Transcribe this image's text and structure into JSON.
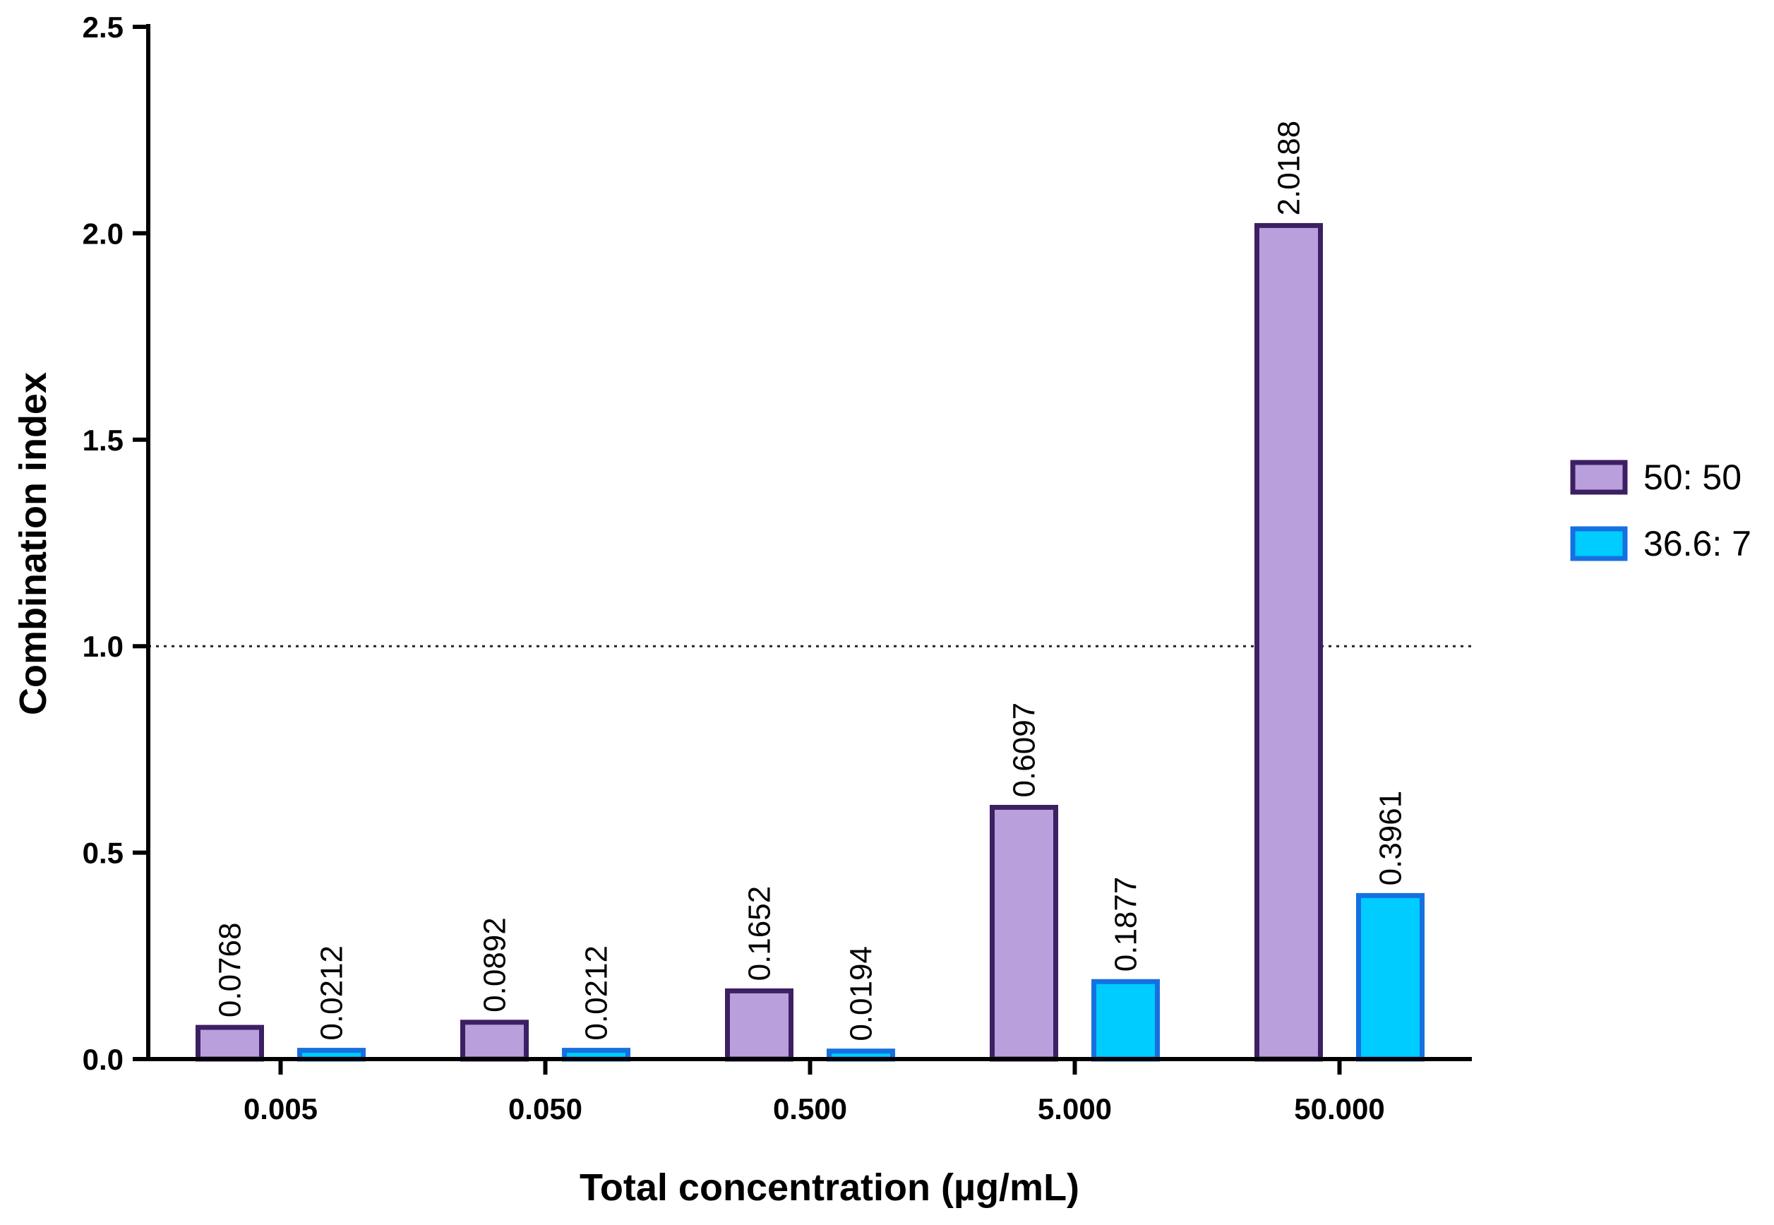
{
  "chart_data": {
    "type": "bar",
    "title": "",
    "xlabel": "Total concentration (µg/mL)",
    "ylabel": "Combination index",
    "categories": [
      "0.005",
      "0.050",
      "0.500",
      "5.000",
      "50.000"
    ],
    "ylim": [
      0,
      2.5
    ],
    "yticks": [
      "0.0",
      "0.5",
      "1.0",
      "1.5",
      "2.0",
      "2.5"
    ],
    "reference_line": {
      "y": 1.0,
      "style": "dotted"
    },
    "legend_position": "right",
    "series": [
      {
        "name": "50: 50",
        "values": [
          0.0768,
          0.0892,
          0.1652,
          0.6097,
          2.0188
        ],
        "labels": [
          "0.0768",
          "0.0892",
          "0.1652",
          "0.6097",
          "2.0188"
        ],
        "fill": "#b99fdc",
        "stroke": "#3d1f63"
      },
      {
        "name": "36.6: 7",
        "values": [
          0.0212,
          0.0212,
          0.0194,
          0.1877,
          0.3961
        ],
        "labels": [
          "0.0212",
          "0.0212",
          "0.0194",
          "0.1877",
          "0.3961"
        ],
        "fill": "#00ccff",
        "stroke": "#1670e0"
      }
    ]
  }
}
